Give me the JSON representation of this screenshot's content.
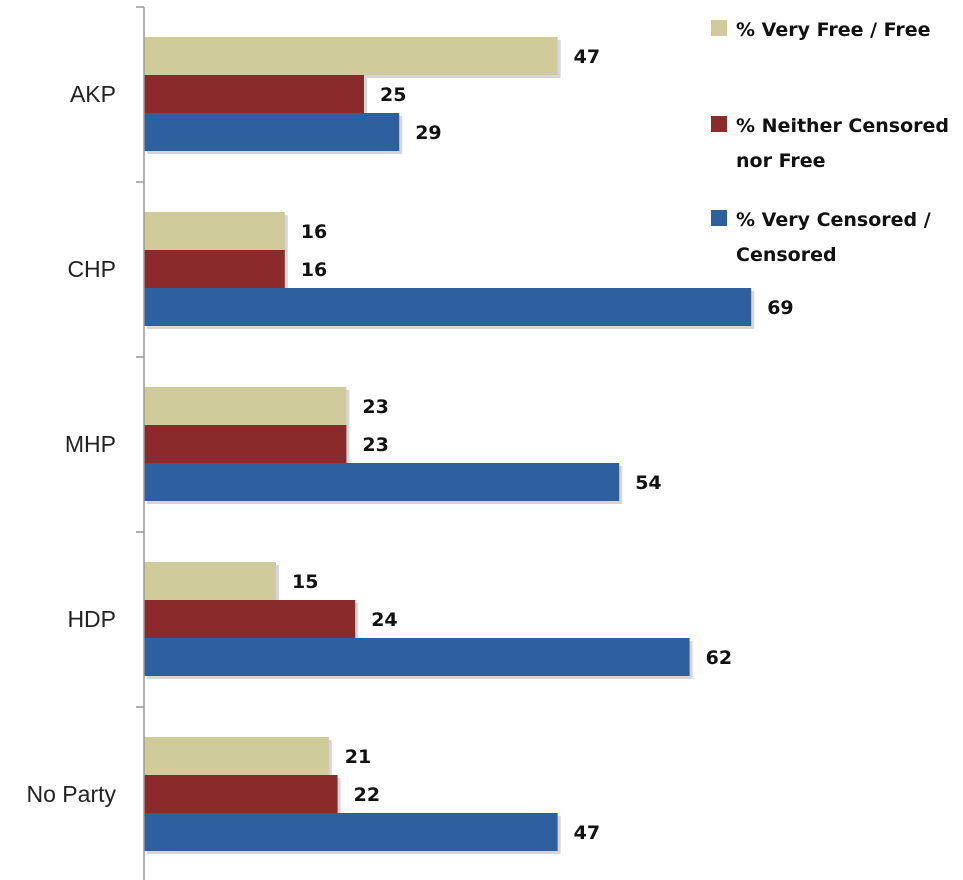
{
  "chart_data": {
    "type": "bar",
    "orientation": "horizontal",
    "categories": [
      "AKP",
      "CHP",
      "MHP",
      "HDP",
      "No Party"
    ],
    "series": [
      {
        "name": "% Very Free / Free",
        "values": [
          47,
          16,
          23,
          15,
          21
        ],
        "color": "#cfcb9b"
      },
      {
        "name": "% Neither Censored nor Free",
        "values": [
          25,
          16,
          23,
          24,
          22
        ],
        "color": "#8b2a2a"
      },
      {
        "name": "% Very Censored / Censored",
        "values": [
          29,
          69,
          54,
          62,
          47
        ],
        "color": "#2e5f9e"
      }
    ],
    "title": "",
    "xlabel": "",
    "ylabel": "",
    "xlim": [
      0,
      75
    ],
    "grid": false,
    "legend": "top-right",
    "data_labels": true
  }
}
